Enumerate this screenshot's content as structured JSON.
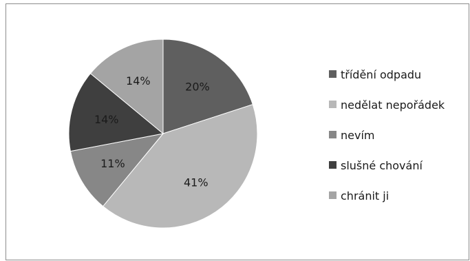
{
  "chart_data": {
    "type": "pie",
    "title": "",
    "slices": [
      {
        "label": "třídění odpadu",
        "value": 20,
        "value_label": "20%",
        "color": "#5f5f5f"
      },
      {
        "label": "nedělat nepořádek",
        "value": 41,
        "value_label": "41%",
        "color": "#b8b8b8"
      },
      {
        "label": "nevím",
        "value": 11,
        "value_label": "11%",
        "color": "#878787"
      },
      {
        "label": "slušné chování",
        "value": 14,
        "value_label": "14%",
        "color": "#3f3f3f"
      },
      {
        "label": "chránit ji",
        "value": 14,
        "value_label": "14%",
        "color": "#a4a4a4"
      }
    ],
    "start_angle": "12 o'clock, clockwise",
    "legend_position": "right"
  }
}
